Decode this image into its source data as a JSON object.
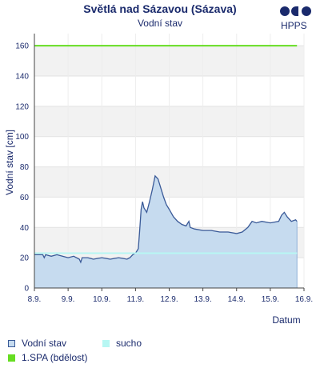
{
  "chart_data": {
    "type": "area",
    "title": "Světlá nad Sázavou (Sázava)",
    "subtitle": "Vodní stav",
    "xlabel": "Datum",
    "ylabel": "Vodní stav [cm]",
    "ylim": [
      0,
      168
    ],
    "yticks": [
      0,
      20,
      40,
      60,
      80,
      100,
      120,
      140,
      160
    ],
    "xlim": [
      "2023-09-08T00:00",
      "2023-09-16T00:00"
    ],
    "xticks": [
      {
        "label": "8.9.",
        "x": "2023-09-08T00:00"
      },
      {
        "label": "9.9.",
        "x": "2023-09-09T00:00"
      },
      {
        "label": "10.9.",
        "x": "2023-09-10T00:00"
      },
      {
        "label": "11.9.",
        "x": "2023-09-11T00:00"
      },
      {
        "label": "12.9.",
        "x": "2023-09-12T00:00"
      },
      {
        "label": "13.9.",
        "x": "2023-09-13T00:00"
      },
      {
        "label": "14.9.",
        "x": "2023-09-14T00:00"
      },
      {
        "label": "15.9.",
        "x": "2023-09-15T00:00"
      },
      {
        "label": "16.9.",
        "x": "2023-09-16T00:00"
      }
    ],
    "grid": "horizontal-bands",
    "series": [
      {
        "name": "Vodní stav",
        "type": "area",
        "color": "#3a5a98",
        "fill": "#c6dbef",
        "points": [
          [
            "2023-09-08T00:00",
            22
          ],
          [
            "2023-09-08T06:00",
            22
          ],
          [
            "2023-09-08T07:00",
            20
          ],
          [
            "2023-09-08T08:00",
            22
          ],
          [
            "2023-09-08T12:00",
            21
          ],
          [
            "2023-09-08T16:00",
            22
          ],
          [
            "2023-09-08T20:00",
            21
          ],
          [
            "2023-09-09T00:00",
            20
          ],
          [
            "2023-09-09T04:00",
            21
          ],
          [
            "2023-09-09T08:00",
            19
          ],
          [
            "2023-09-09T09:00",
            17
          ],
          [
            "2023-09-09T10:00",
            20
          ],
          [
            "2023-09-09T14:00",
            20
          ],
          [
            "2023-09-09T18:00",
            19
          ],
          [
            "2023-09-10T00:00",
            20
          ],
          [
            "2023-09-10T06:00",
            19
          ],
          [
            "2023-09-10T12:00",
            20
          ],
          [
            "2023-09-10T18:00",
            19
          ],
          [
            "2023-09-10T20:00",
            20
          ],
          [
            "2023-09-10T22:00",
            22
          ],
          [
            "2023-09-11T00:00",
            23
          ],
          [
            "2023-09-11T02:00",
            26
          ],
          [
            "2023-09-11T03:00",
            38
          ],
          [
            "2023-09-11T04:00",
            52
          ],
          [
            "2023-09-11T05:00",
            57
          ],
          [
            "2023-09-11T06:00",
            53
          ],
          [
            "2023-09-11T08:00",
            50
          ],
          [
            "2023-09-11T10:00",
            57
          ],
          [
            "2023-09-11T12:00",
            65
          ],
          [
            "2023-09-11T14:00",
            74
          ],
          [
            "2023-09-11T16:00",
            72
          ],
          [
            "2023-09-11T18:00",
            66
          ],
          [
            "2023-09-11T20:00",
            60
          ],
          [
            "2023-09-11T22:00",
            55
          ],
          [
            "2023-09-12T00:00",
            52
          ],
          [
            "2023-09-12T03:00",
            47
          ],
          [
            "2023-09-12T06:00",
            44
          ],
          [
            "2023-09-12T09:00",
            42
          ],
          [
            "2023-09-12T12:00",
            41
          ],
          [
            "2023-09-12T14:00",
            44
          ],
          [
            "2023-09-12T15:00",
            40
          ],
          [
            "2023-09-12T18:00",
            39
          ],
          [
            "2023-09-13T00:00",
            38
          ],
          [
            "2023-09-13T06:00",
            38
          ],
          [
            "2023-09-13T12:00",
            37
          ],
          [
            "2023-09-13T18:00",
            37
          ],
          [
            "2023-09-14T00:00",
            36
          ],
          [
            "2023-09-14T04:00",
            37
          ],
          [
            "2023-09-14T08:00",
            40
          ],
          [
            "2023-09-14T11:00",
            44
          ],
          [
            "2023-09-14T14:00",
            43
          ],
          [
            "2023-09-14T18:00",
            44
          ],
          [
            "2023-09-15T00:00",
            43
          ],
          [
            "2023-09-15T06:00",
            44
          ],
          [
            "2023-09-15T08:00",
            48
          ],
          [
            "2023-09-15T10:00",
            50
          ],
          [
            "2023-09-15T12:00",
            47
          ],
          [
            "2023-09-15T15:00",
            44
          ],
          [
            "2023-09-15T18:00",
            45
          ],
          [
            "2023-09-15T19:00",
            44
          ]
        ]
      },
      {
        "name": "sucho",
        "type": "line",
        "color": "#b7f7f3",
        "points": [
          [
            "2023-09-08T00:00",
            23
          ],
          [
            "2023-09-15T19:00",
            23
          ]
        ]
      },
      {
        "name": "1.SPA (bdělost)",
        "type": "line",
        "color": "#66dd22",
        "points": [
          [
            "2023-09-08T00:00",
            160
          ],
          [
            "2023-09-15T19:00",
            160
          ]
        ]
      }
    ],
    "legend": "bottom-left"
  },
  "logo": {
    "text": "HPPS"
  }
}
